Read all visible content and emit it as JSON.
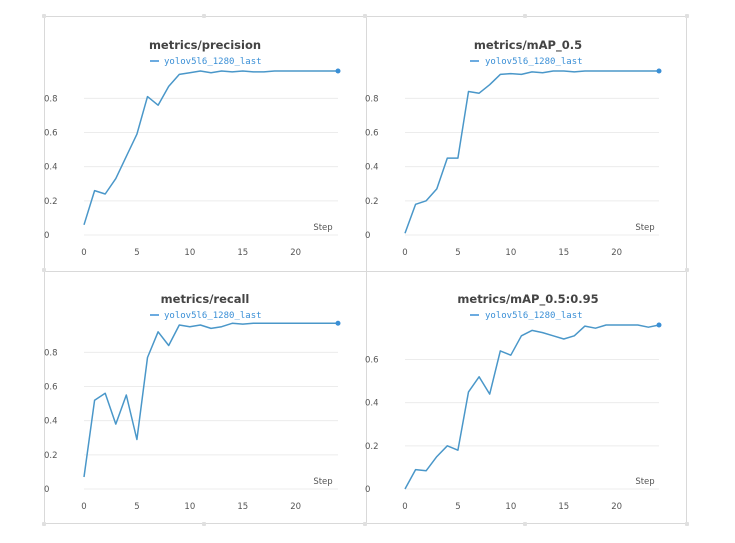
{
  "colors": {
    "line": "#4a97c9",
    "legend": "#3a8fd6",
    "grid": "#ececec"
  },
  "chart_data": [
    {
      "type": "line",
      "title": "metrics/precision",
      "xlabel": "Step",
      "ylabel": "",
      "xlim": [
        0,
        24
      ],
      "ylim": [
        0,
        0.96
      ],
      "xticks": [
        0,
        5,
        10,
        15,
        20
      ],
      "yticks": [
        0,
        0.2,
        0.4,
        0.6,
        0.8
      ],
      "series": [
        {
          "name": "yolov5l6_1280_last",
          "x": [
            0,
            1,
            2,
            3,
            4,
            5,
            6,
            7,
            8,
            9,
            10,
            11,
            12,
            13,
            14,
            15,
            16,
            17,
            18,
            19,
            20,
            21,
            22,
            23,
            24
          ],
          "y": [
            0.06,
            0.26,
            0.24,
            0.33,
            0.46,
            0.59,
            0.81,
            0.76,
            0.87,
            0.94,
            0.95,
            0.96,
            0.95,
            0.96,
            0.955,
            0.96,
            0.955,
            0.955,
            0.96,
            0.96,
            0.96,
            0.96,
            0.96,
            0.96,
            0.96
          ]
        }
      ]
    },
    {
      "type": "line",
      "title": "metrics/mAP_0.5",
      "xlabel": "Step",
      "ylabel": "",
      "xlim": [
        0,
        24
      ],
      "ylim": [
        0,
        0.96
      ],
      "xticks": [
        0,
        5,
        10,
        15,
        20
      ],
      "yticks": [
        0,
        0.2,
        0.4,
        0.6,
        0.8
      ],
      "series": [
        {
          "name": "yolov5l6_1280_last",
          "x": [
            0,
            1,
            2,
            3,
            4,
            5,
            6,
            7,
            8,
            9,
            10,
            11,
            12,
            13,
            14,
            15,
            16,
            17,
            18,
            19,
            20,
            21,
            22,
            23,
            24
          ],
          "y": [
            0.01,
            0.18,
            0.2,
            0.27,
            0.45,
            0.45,
            0.84,
            0.83,
            0.88,
            0.94,
            0.945,
            0.94,
            0.955,
            0.95,
            0.96,
            0.96,
            0.955,
            0.96,
            0.96,
            0.96,
            0.96,
            0.96,
            0.96,
            0.96,
            0.96
          ]
        }
      ]
    },
    {
      "type": "line",
      "title": "metrics/recall",
      "xlabel": "Step",
      "ylabel": "",
      "xlim": [
        0,
        24
      ],
      "ylim": [
        0,
        0.96
      ],
      "xticks": [
        0,
        5,
        10,
        15,
        20
      ],
      "yticks": [
        0,
        0.2,
        0.4,
        0.6,
        0.8
      ],
      "series": [
        {
          "name": "yolov5l6_1280_last",
          "x": [
            0,
            1,
            2,
            3,
            4,
            5,
            6,
            7,
            8,
            9,
            10,
            11,
            12,
            13,
            14,
            15,
            16,
            17,
            18,
            19,
            20,
            21,
            22,
            23,
            24
          ],
          "y": [
            0.07,
            0.52,
            0.56,
            0.38,
            0.55,
            0.29,
            0.77,
            0.92,
            0.84,
            0.96,
            0.95,
            0.96,
            0.94,
            0.95,
            0.97,
            0.965,
            0.97,
            0.97,
            0.97,
            0.97,
            0.97,
            0.97,
            0.97,
            0.97,
            0.97
          ]
        }
      ]
    },
    {
      "type": "line",
      "title": "metrics/mAP_0.5:0.95",
      "xlabel": "Step",
      "ylabel": "",
      "xlim": [
        0,
        24
      ],
      "ylim": [
        0,
        0.76
      ],
      "xticks": [
        0,
        5,
        10,
        15,
        20
      ],
      "yticks": [
        0,
        0.2,
        0.4,
        0.6
      ],
      "series": [
        {
          "name": "yolov5l6_1280_last",
          "x": [
            0,
            1,
            2,
            3,
            4,
            5,
            6,
            7,
            8,
            9,
            10,
            11,
            12,
            13,
            14,
            15,
            16,
            17,
            18,
            19,
            20,
            21,
            22,
            23,
            24
          ],
          "y": [
            0.0,
            0.09,
            0.085,
            0.15,
            0.2,
            0.18,
            0.45,
            0.52,
            0.44,
            0.64,
            0.62,
            0.71,
            0.735,
            0.725,
            0.71,
            0.695,
            0.71,
            0.755,
            0.745,
            0.76,
            0.76,
            0.76,
            0.76,
            0.75,
            0.76
          ]
        }
      ]
    }
  ]
}
